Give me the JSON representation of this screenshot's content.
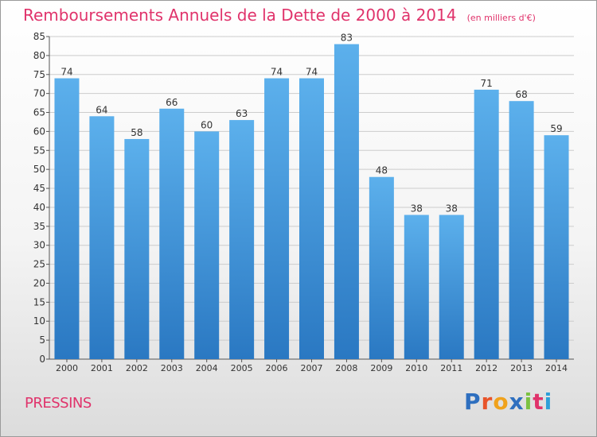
{
  "header": {
    "title": "Remboursements Annuels de la Dette de 2000 à 2014",
    "unit": "(en milliers d'€)"
  },
  "footer": {
    "commune": "PRESSINS",
    "logo": {
      "letters": [
        "P",
        "r",
        "o",
        "x",
        "i",
        "t",
        "i"
      ],
      "colors": [
        "#2e6fbf",
        "#e8542a",
        "#f0a21c",
        "#2e6fbf",
        "#7cc242",
        "#e0336b",
        "#2e9fd8"
      ]
    }
  },
  "colors": {
    "bar_top": "#5cb0ec",
    "bar_bottom": "#2a78c2",
    "title": "#e0336b",
    "text": "#333333",
    "grid": "#cccccc"
  },
  "chart_data": {
    "type": "bar",
    "title": "Remboursements Annuels de la Dette de 2000 à 2014",
    "subtitle": "(en milliers d'€)",
    "categories": [
      "2000",
      "2001",
      "2002",
      "2003",
      "2004",
      "2005",
      "2006",
      "2007",
      "2008",
      "2009",
      "2010",
      "2011",
      "2012",
      "2013",
      "2014"
    ],
    "values": [
      74,
      64,
      58,
      66,
      60,
      63,
      74,
      74,
      83,
      48,
      38,
      38,
      71,
      68,
      59
    ],
    "data_labels": [
      "74",
      "64",
      "58",
      "66",
      "60",
      "63",
      "74",
      "74",
      "83",
      "48",
      "38",
      "38",
      "71",
      "68",
      "59"
    ],
    "ylim": [
      0,
      85
    ],
    "yticks": [
      0,
      5,
      10,
      15,
      20,
      25,
      30,
      35,
      40,
      45,
      50,
      55,
      60,
      65,
      70,
      75,
      80,
      85
    ],
    "ytick_labels": [
      "0",
      "5",
      "10",
      "15",
      "20",
      "25",
      "30",
      "35",
      "40",
      "45",
      "50",
      "55",
      "60",
      "65",
      "70",
      "75",
      "80",
      "85"
    ],
    "grid": true,
    "legend": false
  }
}
